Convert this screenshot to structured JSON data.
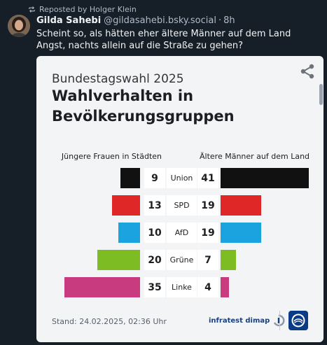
{
  "repost": {
    "text": "Reposted by Holger Klein",
    "icon": "repost-icon"
  },
  "post": {
    "display_name": "Gilda Sahebi",
    "handle": "@gildasahebi.bsky.social",
    "separator": "·",
    "time": "8h",
    "text": "Scheint so, als hätten eher ältere Männer auf dem Land Angst, nachts allein auf die Straße zu gehen?"
  },
  "card": {
    "subtitle": "Bundestagswahl 2025",
    "title": "Wahlverhalten in Bevölkerungsgruppen",
    "stand": "Stand:  24.02.2025, 02:36 Uhr",
    "logo_text": "infratest dimap",
    "share_icon": "share-icon"
  },
  "chart_data": {
    "type": "bar",
    "title": "Wahlverhalten in Bevölkerungsgruppen",
    "subtitle": "Bundestagswahl 2025",
    "categories": [
      "Union",
      "SPD",
      "AfD",
      "Grüne",
      "Linke"
    ],
    "series": [
      {
        "name": "Jüngere Frauen in Städten",
        "values": [
          9,
          13,
          10,
          20,
          35
        ],
        "direction": "left"
      },
      {
        "name": "Ältere Männer auf dem Land",
        "values": [
          41,
          19,
          19,
          7,
          4
        ],
        "direction": "right"
      }
    ],
    "colors": [
      "#111111",
      "#e02727",
      "#1aa3df",
      "#7dbd23",
      "#c83b7e"
    ],
    "unit": "%",
    "xlim": [
      0,
      41
    ],
    "legend": "top"
  }
}
